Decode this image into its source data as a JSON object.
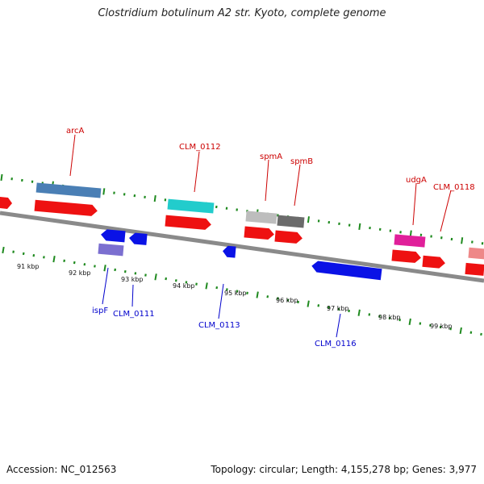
{
  "title": "Clostridium botulinum A2 str. Kyoto, complete genome",
  "footer": {
    "accession": "Accession: NC_012563",
    "topology": "Topology: circular; Length: 4,155,278 bp; Genes: 3,977"
  },
  "colors": {
    "backbone": "#8a8a8a",
    "tick": "#1f8a1f",
    "label_upper": "#cc0000",
    "label_lower": "#0000cc"
  },
  "scale_labels": [
    "91 kbp",
    "92 kbp",
    "93 kbp",
    "94 kbp",
    "95 kbp",
    "96 kbp",
    "97 kbp",
    "98 kbp",
    "99 kbp"
  ],
  "genes_upper": [
    {
      "label": "arcA",
      "color": "#4a7fb5"
    },
    {
      "label": "CLM_0112",
      "color": "#22cccc"
    },
    {
      "label": "spmA",
      "color": "#bdbdbd"
    },
    {
      "label": "spmB",
      "color": "#6b6b6b"
    },
    {
      "label": "udgA",
      "color": "#e0209a"
    },
    {
      "label": "CLM_0118",
      "color": "#ee8888"
    }
  ],
  "genes_lower": [
    {
      "label": "ispF",
      "color": "#7b6fd0"
    },
    {
      "label": "CLM_0111",
      "color": "#0a12e6"
    },
    {
      "label": "CLM_0113",
      "color": "#0a12e6"
    },
    {
      "label": "CLM_0116",
      "color": "#0a12e6"
    }
  ]
}
